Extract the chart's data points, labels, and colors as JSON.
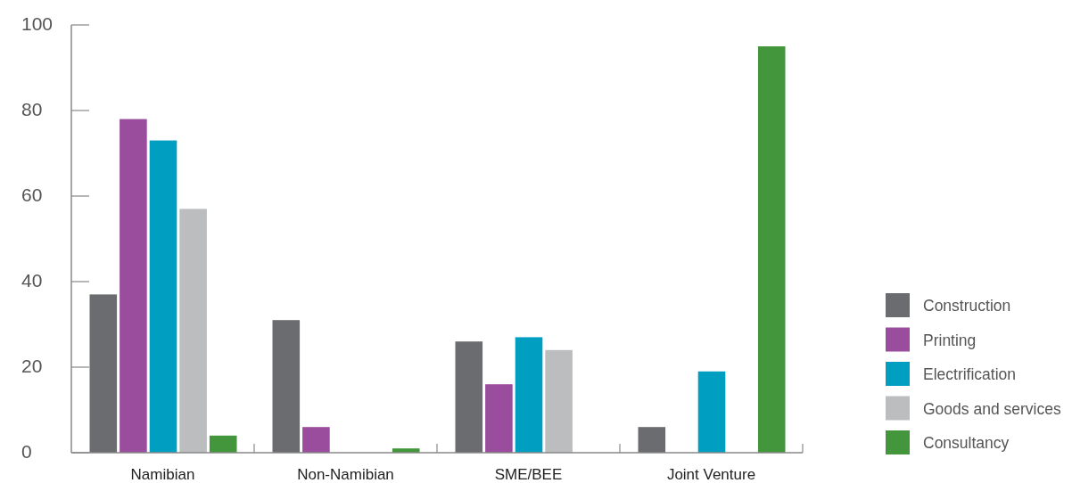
{
  "chart_data": {
    "type": "bar",
    "categories": [
      "Namibian",
      "Non-Namibian",
      "SME/BEE",
      "Joint Venture"
    ],
    "series": [
      {
        "name": "Construction",
        "color": "#6b6c70",
        "values": [
          37,
          31,
          26,
          6
        ]
      },
      {
        "name": "Printing",
        "color": "#9a4d9c",
        "values": [
          78,
          6,
          16,
          0
        ]
      },
      {
        "name": "Electrification",
        "color": "#009fc2",
        "values": [
          73,
          0,
          27,
          19
        ]
      },
      {
        "name": "Goods and services",
        "color": "#bcbdbf",
        "values": [
          57,
          0,
          24,
          0
        ]
      },
      {
        "name": "Consultancy",
        "color": "#43963b",
        "values": [
          4,
          1,
          0,
          95
        ]
      }
    ],
    "ylim": [
      0,
      100
    ],
    "yticks": [
      0,
      20,
      40,
      60,
      80,
      100
    ],
    "legend": "right",
    "grid": false
  }
}
